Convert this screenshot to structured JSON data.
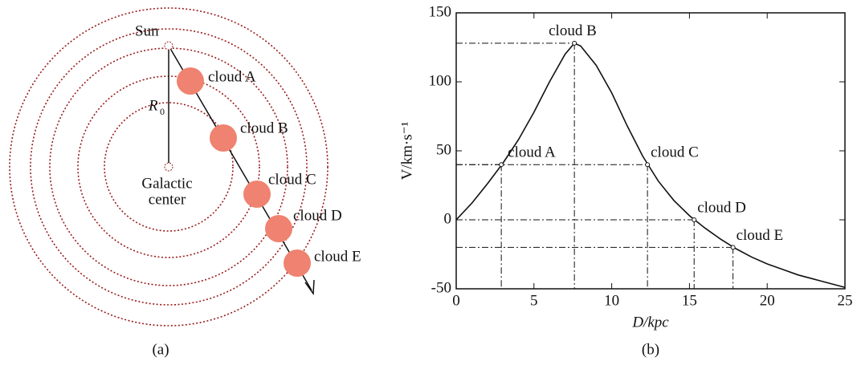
{
  "diagram": {
    "caption": "(a)",
    "sun": "Sun",
    "radius": "R",
    "radius_sub": "0",
    "center": [
      "Galactic",
      "center"
    ],
    "clouds": [
      "cloud A",
      "cloud B",
      "cloud C",
      "cloud D",
      "cloud E"
    ]
  },
  "chart_data": {
    "type": "line",
    "caption": "(b)",
    "xlabel": "D/kpc",
    "ylabel": "V/km·s⁻¹",
    "xlim": [
      0,
      25
    ],
    "ylim": [
      -50,
      150
    ],
    "xticks": [
      0,
      5,
      10,
      15,
      20,
      25
    ],
    "yticks": [
      -50,
      0,
      50,
      100,
      150
    ],
    "series": [
      {
        "color": "#111111",
        "x": [
          0,
          1,
          2,
          3,
          4,
          5,
          6,
          7,
          7.6,
          8,
          9,
          10,
          11,
          12,
          13,
          14,
          15,
          16,
          17,
          18,
          19,
          20,
          21,
          22,
          23,
          24,
          25
        ],
        "values": [
          0,
          12,
          26,
          41,
          58,
          78,
          100,
          120,
          128,
          126,
          112,
          92,
          68,
          46,
          28,
          14,
          3,
          -6,
          -14,
          -21,
          -27,
          -32,
          -36,
          -40,
          -43,
          -46,
          -49
        ]
      }
    ],
    "annotations": [
      {
        "text": "cloud A",
        "x": 2.9,
        "y": 40
      },
      {
        "text": "cloud B",
        "x": 7.6,
        "y": 128
      },
      {
        "text": "cloud C",
        "x": 12.3,
        "y": 40
      },
      {
        "text": "cloud D",
        "x": 15.3,
        "y": 0
      },
      {
        "text": "cloud E",
        "x": 17.8,
        "y": -20
      }
    ]
  }
}
